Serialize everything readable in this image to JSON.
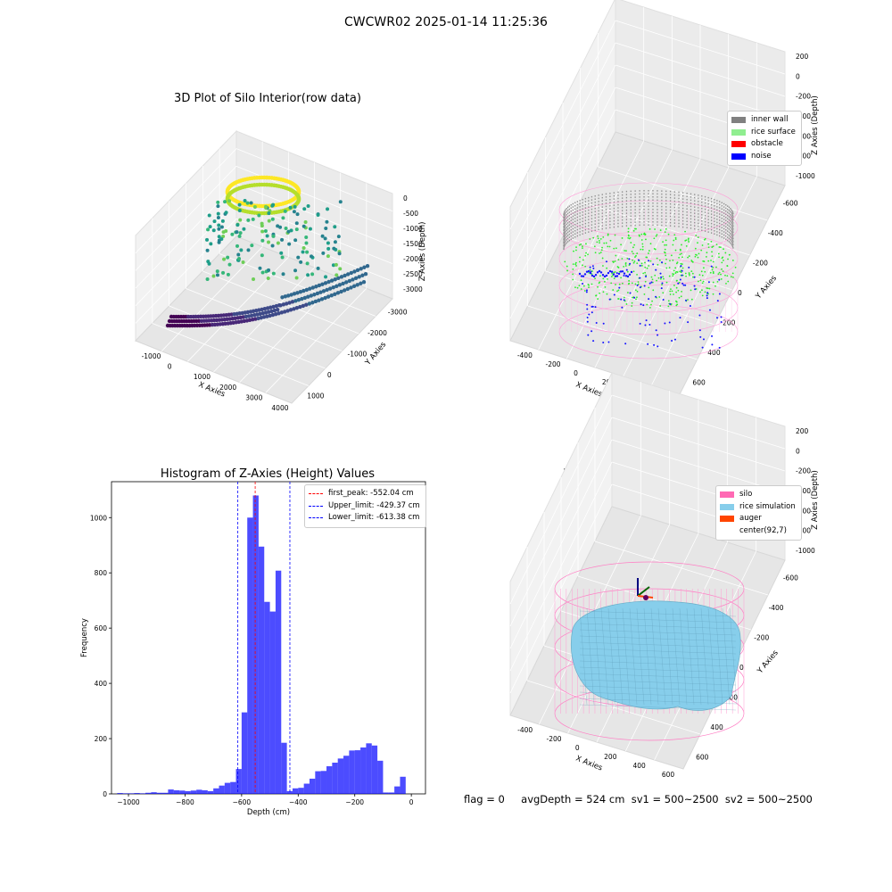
{
  "suptitle": "CWCWR02 2025-01-14 11:25:36",
  "panels": {
    "raw": {
      "title": "3D Plot of Silo Interior(row data)",
      "xlabel": "X Axies",
      "ylabel": "Y Axies",
      "zlabel": "Z Axies (Depth)",
      "xticks": [
        "-1000",
        "0",
        "1000",
        "2000",
        "3000",
        "4000"
      ],
      "yticks": [
        "1000",
        "0",
        "-1000",
        "-2000",
        "-3000"
      ],
      "zticks": [
        "0",
        "-500",
        "-1000",
        "-1500",
        "-2000",
        "-2500",
        "-3000"
      ]
    },
    "classify": {
      "title": "3D classify of Silo Interior",
      "xlabel": "X Axies",
      "ylabel": "Y Axies",
      "zlabel": "Z Axies (Depth)",
      "xticks": [
        "-400",
        "-200",
        "0",
        "200",
        "400",
        "600"
      ],
      "yticks": [
        "600",
        "400",
        "200",
        "0",
        "-200",
        "-400",
        "-600"
      ],
      "zticks": [
        "200",
        "0",
        "-200",
        "-400",
        "-600",
        "-800",
        "-1000"
      ],
      "legend": [
        {
          "label": "inner wall",
          "color": "#808080"
        },
        {
          "label": "rice surface",
          "color": "#90ee90"
        },
        {
          "label": "obstacle",
          "color": "#ff0000"
        },
        {
          "label": "noise",
          "color": "#0000ff"
        }
      ]
    },
    "simulation": {
      "title": "3D simulation of Silo Interior",
      "xlabel": "X Axies",
      "ylabel": "Y Axies",
      "zlabel": "Z Axies (Depth)",
      "xticks": [
        "-400",
        "-200",
        "0",
        "200",
        "400",
        "600"
      ],
      "yticks": [
        "600",
        "400",
        "200",
        "0",
        "-200",
        "-400",
        "-600"
      ],
      "zticks": [
        "200",
        "0",
        "-200",
        "-400",
        "-600",
        "-800",
        "-1000"
      ],
      "legend": [
        {
          "label": "silo",
          "color": "#ff69b4"
        },
        {
          "label": "rice simulation",
          "color": "#87ceeb"
        },
        {
          "label": "auger",
          "color": "#ff4500"
        },
        {
          "label": "center(92,7)",
          "color": ""
        }
      ]
    }
  },
  "footer": {
    "flag": "flag = 0",
    "stats": "avgDepth = 524 cm  sv1 = 500~2500  sv2 = 500~2500"
  },
  "chart_data": [
    {
      "type": "bar",
      "title": "Histogram of Z-Axies (Height) Values",
      "xlabel": "Depth (cm)",
      "ylabel": "Frequency",
      "xlim": [
        -1060,
        50
      ],
      "ylim": [
        0,
        1130
      ],
      "xticks": [
        -1000,
        -800,
        -600,
        -400,
        -200,
        0
      ],
      "yticks": [
        0,
        200,
        400,
        600,
        800,
        1000
      ],
      "bin_width": 20,
      "color": "#0000ff",
      "bins": [
        {
          "x": -1040,
          "count": 3
        },
        {
          "x": -1020,
          "count": 2
        },
        {
          "x": -1000,
          "count": 2
        },
        {
          "x": -980,
          "count": 3
        },
        {
          "x": -960,
          "count": 2
        },
        {
          "x": -940,
          "count": 4
        },
        {
          "x": -920,
          "count": 6
        },
        {
          "x": -900,
          "count": 4
        },
        {
          "x": -880,
          "count": 4
        },
        {
          "x": -860,
          "count": 16
        },
        {
          "x": -840,
          "count": 13
        },
        {
          "x": -820,
          "count": 12
        },
        {
          "x": -800,
          "count": 10
        },
        {
          "x": -780,
          "count": 12
        },
        {
          "x": -760,
          "count": 15
        },
        {
          "x": -740,
          "count": 13
        },
        {
          "x": -720,
          "count": 10
        },
        {
          "x": -700,
          "count": 20
        },
        {
          "x": -680,
          "count": 30
        },
        {
          "x": -660,
          "count": 40
        },
        {
          "x": -640,
          "count": 43
        },
        {
          "x": -620,
          "count": 90
        },
        {
          "x": -600,
          "count": 295
        },
        {
          "x": -580,
          "count": 1000
        },
        {
          "x": -560,
          "count": 1080
        },
        {
          "x": -540,
          "count": 895
        },
        {
          "x": -520,
          "count": 695
        },
        {
          "x": -500,
          "count": 660
        },
        {
          "x": -480,
          "count": 808
        },
        {
          "x": -460,
          "count": 185
        },
        {
          "x": -440,
          "count": 10
        },
        {
          "x": -420,
          "count": 20
        },
        {
          "x": -400,
          "count": 22
        },
        {
          "x": -380,
          "count": 37
        },
        {
          "x": -360,
          "count": 55
        },
        {
          "x": -340,
          "count": 82
        },
        {
          "x": -320,
          "count": 83
        },
        {
          "x": -300,
          "count": 100
        },
        {
          "x": -280,
          "count": 113
        },
        {
          "x": -260,
          "count": 128
        },
        {
          "x": -240,
          "count": 138
        },
        {
          "x": -220,
          "count": 157
        },
        {
          "x": -200,
          "count": 158
        },
        {
          "x": -180,
          "count": 168
        },
        {
          "x": -160,
          "count": 183
        },
        {
          "x": -140,
          "count": 175
        },
        {
          "x": -120,
          "count": 120
        },
        {
          "x": -100,
          "count": 5
        },
        {
          "x": -80,
          "count": 5
        },
        {
          "x": -60,
          "count": 27
        },
        {
          "x": -40,
          "count": 62
        }
      ],
      "vlines": [
        {
          "label": "first_peak: -552.04 cm",
          "x": -552.04,
          "color": "#ff0000"
        },
        {
          "label": "Upper_limit: -429.37 cm",
          "x": -429.37,
          "color": "#0000ff"
        },
        {
          "label": "Lower_limit: -613.38 cm",
          "x": -613.38,
          "color": "#0000ff"
        }
      ]
    }
  ]
}
